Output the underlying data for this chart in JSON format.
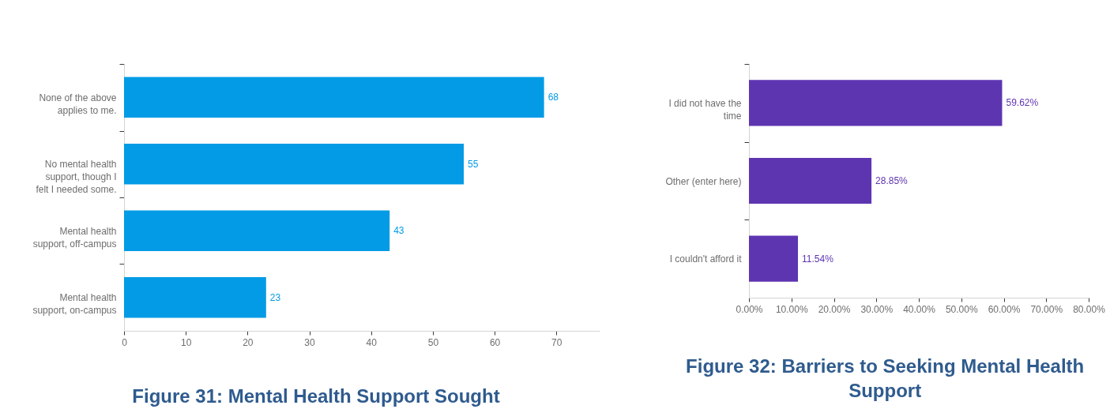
{
  "chart_data": [
    {
      "type": "bar",
      "orientation": "horizontal",
      "title": "Figure 31: Mental Health Support Sought",
      "categories": [
        "None of the above applies to me.",
        "No mental health support, though I felt I needed some.",
        "Mental health support, off-campus",
        "Mental health support, on-campus"
      ],
      "values": [
        68,
        55,
        43,
        23
      ],
      "color": "#039be5",
      "data_labels": true,
      "xlim": [
        0,
        77
      ],
      "xticks": [
        0,
        10,
        20,
        30,
        40,
        50,
        60,
        70
      ]
    },
    {
      "type": "bar",
      "orientation": "horizontal",
      "title": "Figure 32: Barriers to Seeking Mental Health Support",
      "categories": [
        "I did not have the time",
        "Other (enter here)",
        "I couldn't afford it"
      ],
      "values": [
        59.62,
        28.85,
        11.54
      ],
      "value_labels": [
        "59.62%",
        "28.85%",
        "11.54%"
      ],
      "color": "#5e35b1",
      "xlim": [
        0,
        80
      ],
      "xticks": [
        {
          "value": 0,
          "label": "0.00%"
        },
        {
          "value": 10,
          "label": "10.00%"
        },
        {
          "value": 20,
          "label": "20.00%"
        },
        {
          "value": 30,
          "label": "30.00%"
        },
        {
          "value": 40,
          "label": "40.00%"
        },
        {
          "value": 50,
          "label": "50.00%"
        },
        {
          "value": 60,
          "label": "60.00%"
        },
        {
          "value": 70,
          "label": "70.00%"
        },
        {
          "value": 80,
          "label": "80.00%"
        }
      ]
    }
  ]
}
